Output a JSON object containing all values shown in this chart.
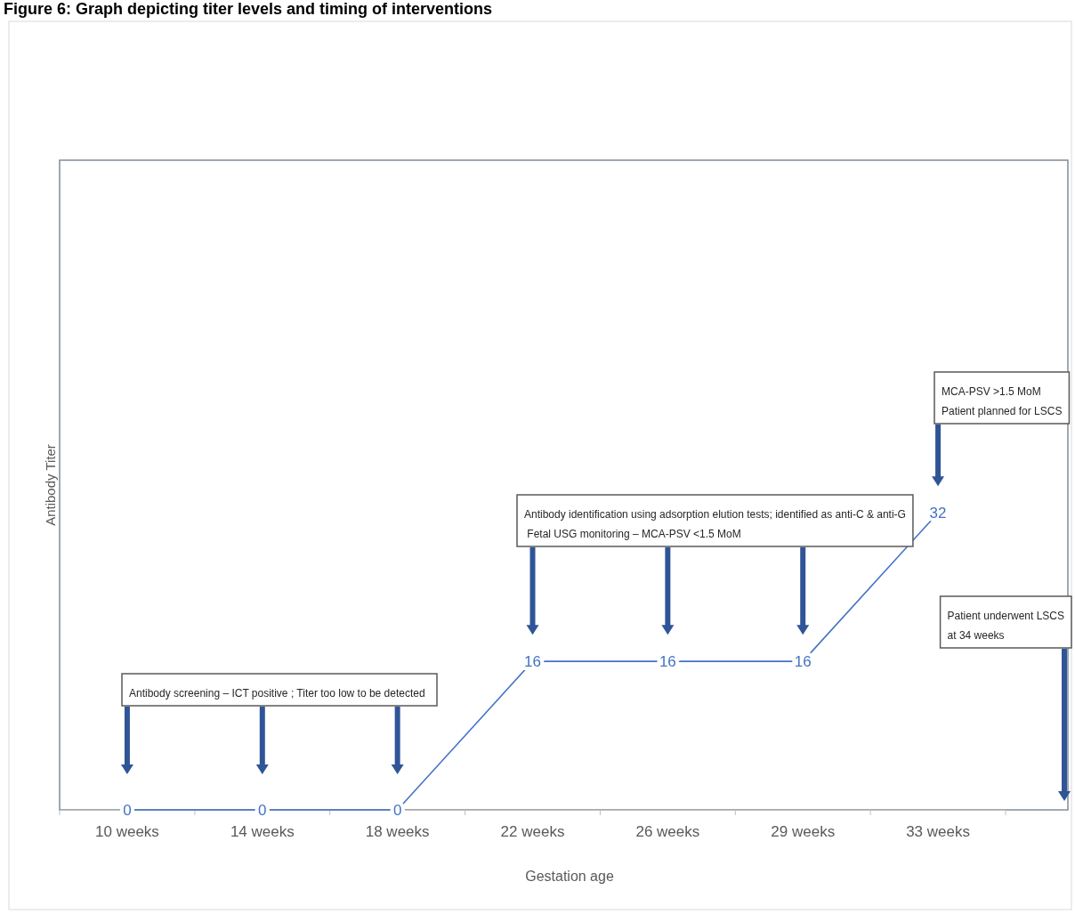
{
  "chart_data": {
    "type": "line",
    "title": "Figure 6: Graph depicting titer levels and timing of interventions",
    "xlabel": "Gestation age",
    "ylabel": "Antibody Titer",
    "categories": [
      "10 weeks",
      "14 weeks",
      "18 weeks",
      "22 weeks",
      "26 weeks",
      "29 weeks",
      "33 weeks"
    ],
    "series": [
      {
        "color": "#4472c4",
        "values": [
          0,
          0,
          0,
          16,
          16,
          16,
          32
        ]
      }
    ],
    "ylim": [
      0,
      70
    ],
    "tick_labels": "x",
    "data_labels": true,
    "grid": false,
    "line_style": "solid",
    "annotations": [
      "Antibody screening – ICT positive ; Titer too low to be detected",
      "Antibody identification using adsorption elution tests; identified as anti-C & anti-G\n Fetal USG monitoring – MCA-PSV <1.5 MoM",
      "MCA-PSV >1.5 MoM\nPatient planned for LSCS",
      "Patient underwent LSCS\nat 34 weeks"
    ]
  }
}
